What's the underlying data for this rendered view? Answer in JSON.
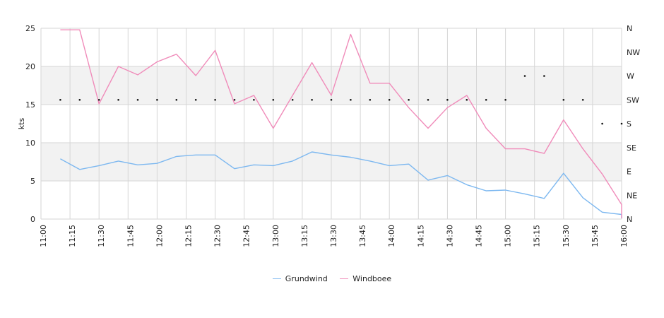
{
  "chart_data": {
    "type": "line",
    "ylabel": "kts",
    "ylim": [
      0,
      25
    ],
    "y_ticks": [
      "0",
      "5",
      "10",
      "15",
      "20",
      "25"
    ],
    "x_ticks": [
      "11:00",
      "11:15",
      "11:30",
      "11:45",
      "12:00",
      "12:15",
      "12:30",
      "12:45",
      "13:00",
      "13:15",
      "13:30",
      "13:45",
      "14:00",
      "14:15",
      "14:30",
      "14:45",
      "15:00",
      "15:15",
      "15:30",
      "15:45",
      "16:00"
    ],
    "direction_ticks": [
      "N",
      "NE",
      "E",
      "SE",
      "S",
      "SW",
      "W",
      "NW",
      "N"
    ],
    "bands": [
      [
        5,
        10
      ],
      [
        15,
        20
      ]
    ],
    "grid": true,
    "legend_position": "bottom",
    "series": [
      {
        "name": "Grundwind",
        "color": "#7db8f0",
        "points": [
          [
            "11:10",
            7.9
          ],
          [
            "11:20",
            6.5
          ],
          [
            "11:30",
            7.0
          ],
          [
            "11:40",
            7.6
          ],
          [
            "11:50",
            7.1
          ],
          [
            "12:00",
            7.3
          ],
          [
            "12:10",
            8.2
          ],
          [
            "12:20",
            8.4
          ],
          [
            "12:30",
            8.4
          ],
          [
            "12:40",
            6.6
          ],
          [
            "12:50",
            7.1
          ],
          [
            "13:00",
            7.0
          ],
          [
            "13:10",
            7.6
          ],
          [
            "13:20",
            8.8
          ],
          [
            "13:30",
            8.4
          ],
          [
            "13:40",
            8.1
          ],
          [
            "13:50",
            7.6
          ],
          [
            "14:00",
            7.0
          ],
          [
            "14:10",
            7.2
          ],
          [
            "14:20",
            5.1
          ],
          [
            "14:30",
            5.7
          ],
          [
            "14:40",
            4.5
          ],
          [
            "14:50",
            3.7
          ],
          [
            "15:00",
            3.8
          ],
          [
            "15:10",
            3.3
          ],
          [
            "15:20",
            2.7
          ],
          [
            "15:30",
            6.0
          ],
          [
            "15:40",
            2.8
          ],
          [
            "15:50",
            0.9
          ],
          [
            "16:00",
            0.6
          ],
          [
            "16:00",
            0.1
          ]
        ]
      },
      {
        "name": "Windboee",
        "color": "#f08cba",
        "points": [
          [
            "11:10",
            24.8
          ],
          [
            "11:20",
            24.8
          ],
          [
            "11:30",
            15.1
          ],
          [
            "11:40",
            20.0
          ],
          [
            "11:50",
            18.9
          ],
          [
            "12:00",
            20.6
          ],
          [
            "12:10",
            21.6
          ],
          [
            "12:20",
            18.8
          ],
          [
            "12:30",
            22.1
          ],
          [
            "12:40",
            15.1
          ],
          [
            "12:50",
            16.2
          ],
          [
            "13:00",
            11.9
          ],
          [
            "13:10",
            16.2
          ],
          [
            "13:20",
            20.5
          ],
          [
            "13:30",
            16.2
          ],
          [
            "13:40",
            24.2
          ],
          [
            "13:50",
            17.8
          ],
          [
            "14:00",
            17.8
          ],
          [
            "14:10",
            14.6
          ],
          [
            "14:20",
            11.9
          ],
          [
            "14:30",
            14.6
          ],
          [
            "14:40",
            16.2
          ],
          [
            "14:50",
            11.9
          ],
          [
            "15:00",
            9.2
          ],
          [
            "15:10",
            9.2
          ],
          [
            "15:20",
            8.6
          ],
          [
            "15:30",
            13.0
          ],
          [
            "15:40",
            9.2
          ],
          [
            "15:50",
            5.9
          ],
          [
            "16:00",
            1.9
          ],
          [
            "16:00",
            0.1
          ]
        ]
      }
    ],
    "direction_points": [
      [
        "11:10",
        "SW"
      ],
      [
        "11:20",
        "SW"
      ],
      [
        "11:30",
        "SW"
      ],
      [
        "11:40",
        "SW"
      ],
      [
        "11:50",
        "SW"
      ],
      [
        "12:00",
        "SW"
      ],
      [
        "12:10",
        "SW"
      ],
      [
        "12:20",
        "SW"
      ],
      [
        "12:30",
        "SW"
      ],
      [
        "12:40",
        "SW"
      ],
      [
        "12:50",
        "SW"
      ],
      [
        "13:00",
        "SW"
      ],
      [
        "13:10",
        "SW"
      ],
      [
        "13:20",
        "SW"
      ],
      [
        "13:30",
        "SW"
      ],
      [
        "13:40",
        "SW"
      ],
      [
        "13:50",
        "SW"
      ],
      [
        "14:00",
        "SW"
      ],
      [
        "14:10",
        "SW"
      ],
      [
        "14:20",
        "SW"
      ],
      [
        "14:30",
        "SW"
      ],
      [
        "14:40",
        "SW"
      ],
      [
        "14:50",
        "SW"
      ],
      [
        "15:00",
        "SW"
      ],
      [
        "15:10",
        "W"
      ],
      [
        "15:20",
        "W"
      ],
      [
        "15:30",
        "SW"
      ],
      [
        "15:40",
        "SW"
      ],
      [
        "15:50",
        "S"
      ],
      [
        "16:00",
        "S"
      ]
    ]
  }
}
